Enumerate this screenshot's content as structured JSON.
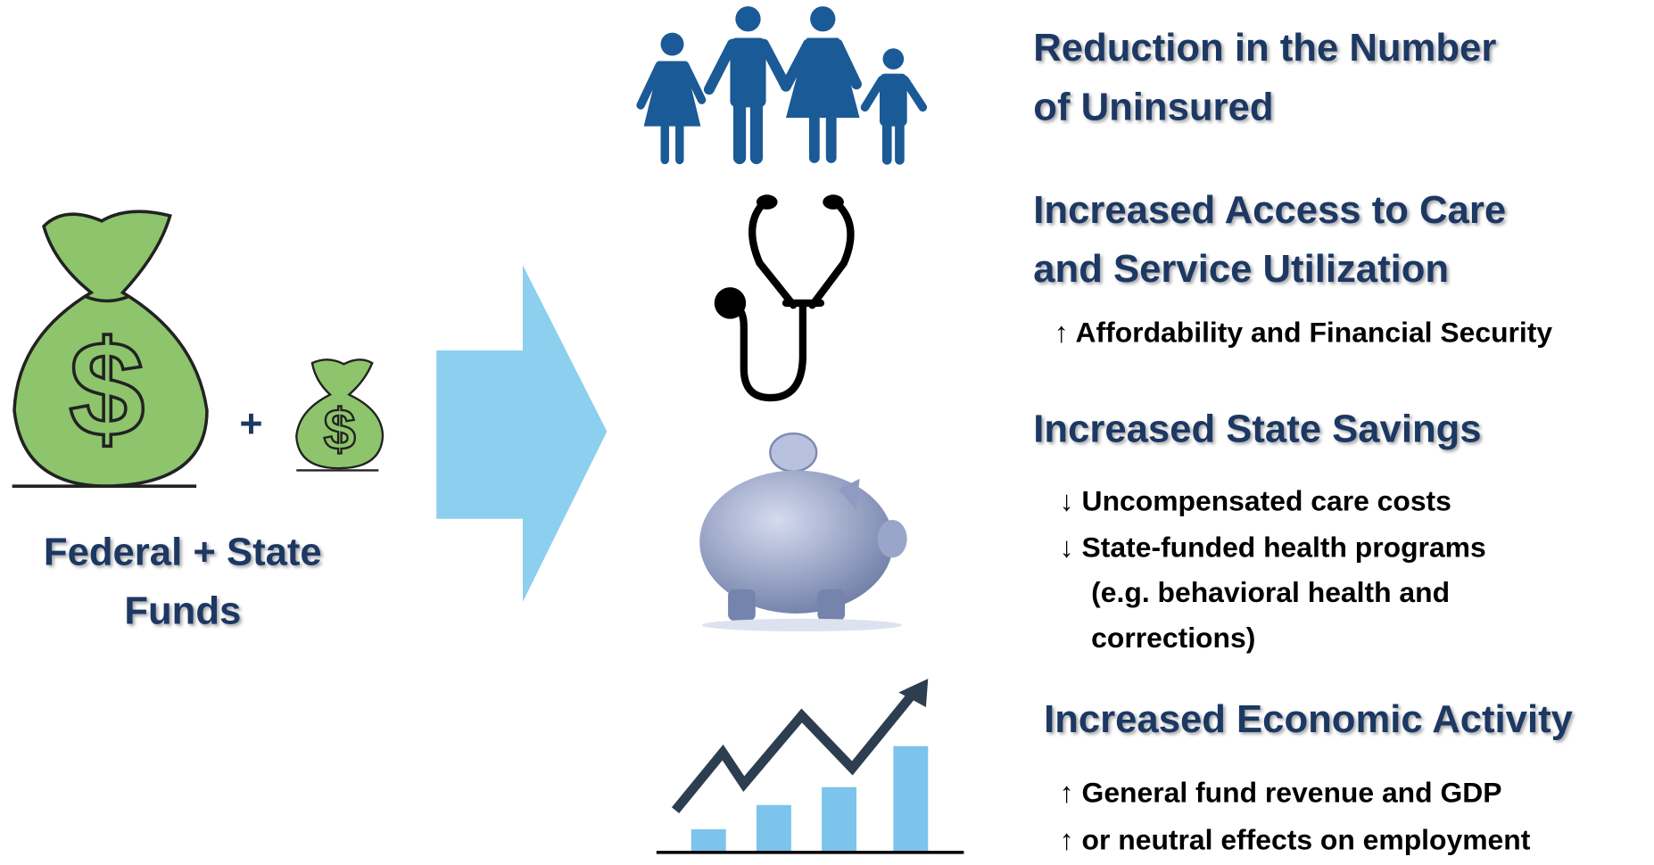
{
  "source": {
    "label": [
      "Federal + State",
      "Funds"
    ],
    "plus": "+"
  },
  "outcomes": [
    {
      "heading": [
        "Reduction in the Number",
        "of Uninsured"
      ],
      "bullets": []
    },
    {
      "heading": [
        "Increased Access to Care",
        "and Service Utilization"
      ],
      "bullets": [
        "↑ Affordability and Financial Security"
      ]
    },
    {
      "heading": [
        "Increased State Savings"
      ],
      "bullets": [
        "↓ Uncompensated care costs",
        "↓ State-funded health programs",
        "(e.g. behavioral health and",
        "corrections)"
      ]
    },
    {
      "heading": [
        "Increased Economic Activity"
      ],
      "bullets": [
        "↑ General fund revenue and GDP",
        "↑  or neutral effects on employment"
      ]
    }
  ]
}
